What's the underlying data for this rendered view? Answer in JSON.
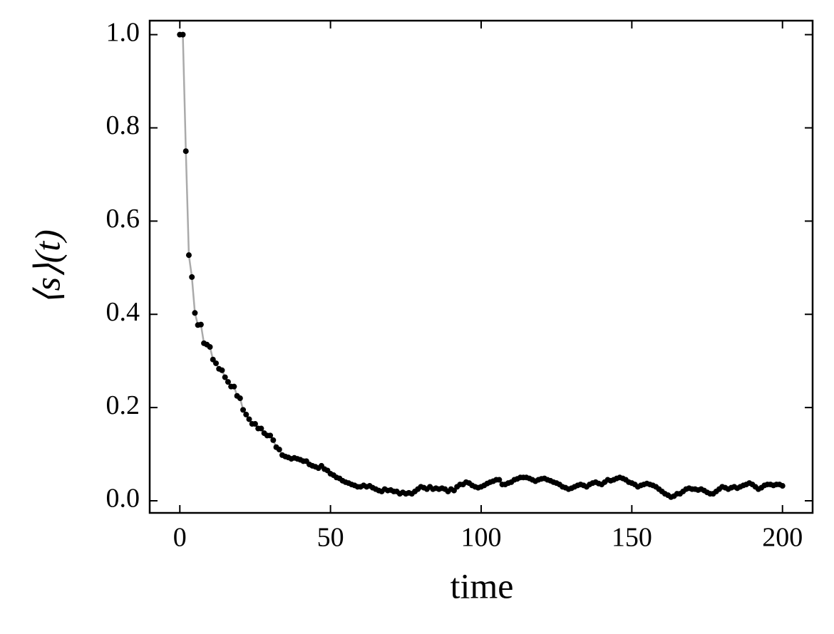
{
  "chart_data": {
    "type": "line",
    "xlabel": "time",
    "ylabel": "⟨s⟩(t)",
    "x": [
      0,
      1,
      2,
      3,
      4,
      5,
      6,
      7,
      8,
      9,
      10,
      11,
      12,
      13,
      14,
      15,
      16,
      17,
      18,
      19,
      20,
      21,
      22,
      23,
      24,
      25,
      26,
      27,
      28,
      29,
      30,
      31,
      32,
      33,
      34,
      35,
      36,
      37,
      38,
      39,
      40,
      41,
      42,
      43,
      44,
      45,
      46,
      47,
      48,
      49,
      50,
      51,
      52,
      53,
      54,
      55,
      56,
      57,
      58,
      59,
      60,
      61,
      62,
      63,
      64,
      65,
      66,
      67,
      68,
      69,
      70,
      71,
      72,
      73,
      74,
      75,
      76,
      77,
      78,
      79,
      80,
      81,
      82,
      83,
      84,
      85,
      86,
      87,
      88,
      89,
      90,
      91,
      92,
      93,
      94,
      95,
      96,
      97,
      98,
      99,
      100,
      101,
      102,
      103,
      104,
      105,
      106,
      107,
      108,
      109,
      110,
      111,
      112,
      113,
      114,
      115,
      116,
      117,
      118,
      119,
      120,
      121,
      122,
      123,
      124,
      125,
      126,
      127,
      128,
      129,
      130,
      131,
      132,
      133,
      134,
      135,
      136,
      137,
      138,
      139,
      140,
      141,
      142,
      143,
      144,
      145,
      146,
      147,
      148,
      149,
      150,
      151,
      152,
      153,
      154,
      155,
      156,
      157,
      158,
      159,
      160,
      161,
      162,
      163,
      164,
      165,
      166,
      167,
      168,
      169,
      170,
      171,
      172,
      173,
      174,
      175,
      176,
      177,
      178,
      179,
      180,
      181,
      182,
      183,
      184,
      185,
      186,
      187,
      188,
      189,
      190,
      191,
      192,
      193,
      194,
      195,
      196,
      197,
      198,
      199,
      200
    ],
    "series": [
      {
        "color": "#000000",
        "line_color": "#aaaaaa",
        "values": [
          1.0,
          1.0,
          0.75,
          0.527,
          0.48,
          0.403,
          0.377,
          0.378,
          0.338,
          0.335,
          0.33,
          0.303,
          0.295,
          0.283,
          0.28,
          0.265,
          0.255,
          0.245,
          0.245,
          0.225,
          0.22,
          0.195,
          0.185,
          0.175,
          0.165,
          0.165,
          0.155,
          0.155,
          0.145,
          0.14,
          0.14,
          0.13,
          0.115,
          0.11,
          0.098,
          0.095,
          0.093,
          0.09,
          0.092,
          0.09,
          0.088,
          0.085,
          0.085,
          0.078,
          0.075,
          0.073,
          0.07,
          0.075,
          0.068,
          0.065,
          0.058,
          0.055,
          0.05,
          0.048,
          0.043,
          0.04,
          0.038,
          0.035,
          0.033,
          0.03,
          0.03,
          0.033,
          0.03,
          0.032,
          0.028,
          0.025,
          0.022,
          0.02,
          0.025,
          0.022,
          0.023,
          0.02,
          0.02,
          0.015,
          0.018,
          0.015,
          0.017,
          0.015,
          0.02,
          0.025,
          0.03,
          0.028,
          0.025,
          0.03,
          0.025,
          0.027,
          0.025,
          0.027,
          0.025,
          0.02,
          0.025,
          0.022,
          0.03,
          0.035,
          0.035,
          0.04,
          0.038,
          0.033,
          0.03,
          0.028,
          0.03,
          0.033,
          0.037,
          0.04,
          0.042,
          0.045,
          0.045,
          0.035,
          0.035,
          0.038,
          0.04,
          0.045,
          0.047,
          0.05,
          0.05,
          0.05,
          0.048,
          0.045,
          0.042,
          0.045,
          0.047,
          0.048,
          0.045,
          0.043,
          0.04,
          0.038,
          0.035,
          0.03,
          0.028,
          0.025,
          0.027,
          0.03,
          0.033,
          0.035,
          0.033,
          0.03,
          0.035,
          0.038,
          0.04,
          0.037,
          0.035,
          0.04,
          0.045,
          0.043,
          0.045,
          0.048,
          0.05,
          0.048,
          0.045,
          0.04,
          0.038,
          0.035,
          0.03,
          0.033,
          0.035,
          0.037,
          0.035,
          0.033,
          0.03,
          0.025,
          0.02,
          0.015,
          0.012,
          0.008,
          0.01,
          0.015,
          0.015,
          0.02,
          0.025,
          0.027,
          0.025,
          0.025,
          0.023,
          0.025,
          0.022,
          0.018,
          0.015,
          0.015,
          0.02,
          0.025,
          0.03,
          0.028,
          0.025,
          0.028,
          0.03,
          0.027,
          0.03,
          0.033,
          0.035,
          0.038,
          0.035,
          0.03,
          0.025,
          0.028,
          0.033,
          0.035,
          0.035,
          0.033,
          0.035,
          0.035,
          0.032
        ]
      }
    ],
    "xlim": [
      -10,
      210
    ],
    "xticks": [
      0,
      50,
      100,
      150,
      200
    ],
    "ylim": [
      -0.026,
      1.03
    ],
    "yticks": [
      {
        "value": 0,
        "label": "0.0"
      },
      0.2,
      0.4,
      0.6,
      0.8,
      {
        "value": 1,
        "label": "1.0"
      }
    ],
    "grid": false
  }
}
